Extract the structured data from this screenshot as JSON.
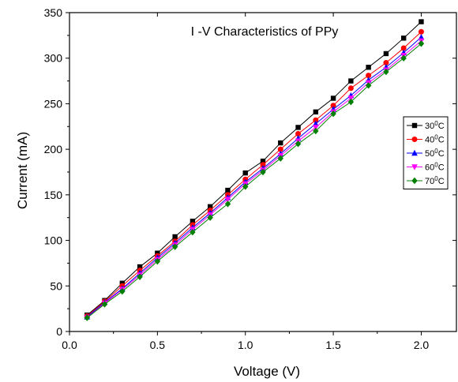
{
  "chart_data": {
    "type": "line",
    "title": "I -V Characteristics of PPy",
    "xlabel": "Voltage (V)",
    "ylabel": "Current (mA)",
    "xlim": [
      0.0,
      2.2
    ],
    "ylim": [
      0,
      350
    ],
    "xticks": [
      0.0,
      0.5,
      1.0,
      1.5,
      2.0
    ],
    "xtick_labels": [
      "0.0",
      "0.5",
      "1.0",
      "1.5",
      "2.0"
    ],
    "yticks": [
      0,
      50,
      100,
      150,
      200,
      250,
      300,
      350
    ],
    "ytick_labels": [
      "0",
      "50",
      "100",
      "150",
      "200",
      "250",
      "300",
      "350"
    ],
    "grid": false,
    "legend_position": "right",
    "x": [
      0.1,
      0.2,
      0.3,
      0.4,
      0.5,
      0.6,
      0.7,
      0.8,
      0.9,
      1.0,
      1.1,
      1.2,
      1.3,
      1.4,
      1.5,
      1.6,
      1.7,
      1.8,
      1.9,
      2.0
    ],
    "series": [
      {
        "name": "30°C",
        "label_base": "30",
        "label_sup": "0",
        "label_unit": "C",
        "color": "#000000",
        "marker": "square",
        "values": [
          18,
          34,
          53,
          71,
          86,
          104,
          121,
          137,
          155,
          174,
          187,
          207,
          224,
          241,
          256,
          275,
          290,
          305,
          322,
          340
        ]
      },
      {
        "name": "40°C",
        "label_base": "40",
        "label_sup": "0",
        "label_unit": "C",
        "color": "#ff0000",
        "marker": "circle",
        "values": [
          17,
          33,
          50,
          67,
          83,
          99,
          117,
          133,
          150,
          167,
          183,
          200,
          217,
          232,
          248,
          267,
          281,
          295,
          311,
          329
        ]
      },
      {
        "name": "50°C",
        "label_base": "50",
        "label_sup": "0",
        "label_unit": "C",
        "color": "#0000ff",
        "marker": "triangle-up",
        "values": [
          16,
          32,
          47,
          64,
          81,
          97,
          114,
          130,
          147,
          164,
          179,
          195,
          212,
          228,
          244,
          259,
          276,
          290,
          306,
          323
        ]
      },
      {
        "name": "60°C",
        "label_base": "60",
        "label_sup": "0",
        "label_unit": "C",
        "color": "#ff00ff",
        "marker": "triangle-down",
        "values": [
          15,
          31,
          46,
          62,
          79,
          95,
          112,
          128,
          145,
          162,
          177,
          193,
          209,
          224,
          241,
          256,
          273,
          287,
          303,
          319
        ]
      },
      {
        "name": "70°C",
        "label_base": "70",
        "label_sup": "0",
        "label_unit": "C",
        "color": "#008000",
        "marker": "diamond",
        "values": [
          15,
          30,
          44,
          60,
          77,
          93,
          109,
          125,
          140,
          159,
          175,
          190,
          206,
          220,
          239,
          252,
          270,
          285,
          300,
          316
        ]
      }
    ]
  }
}
